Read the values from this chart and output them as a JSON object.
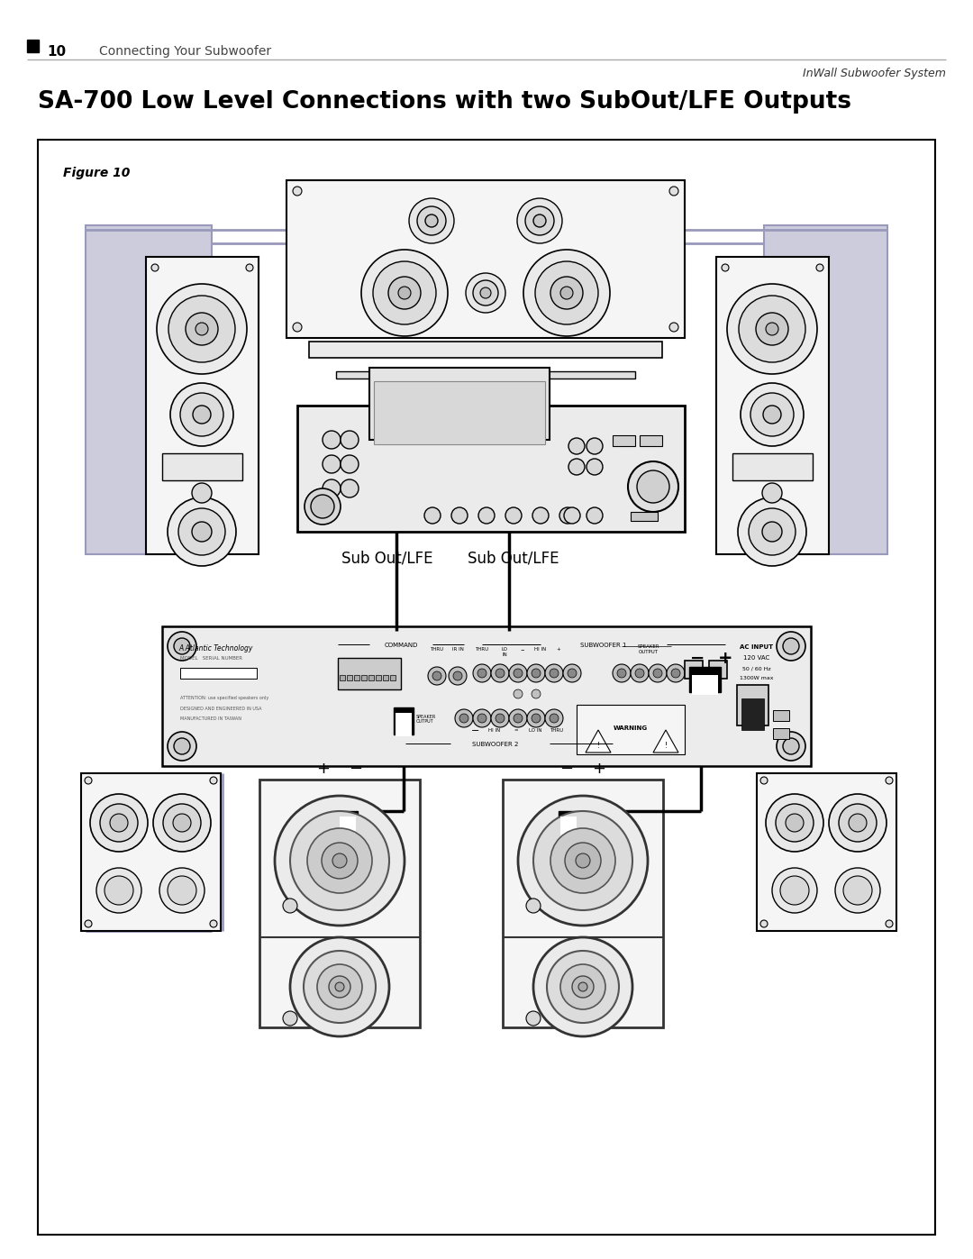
{
  "page_bg": "#ffffff",
  "page_number": "10",
  "header_text": "Connecting Your Subwoofer",
  "header_right": "InWall Subwoofer System",
  "title": "SA-700 Low Level Connections with two SubOut/LFE Outputs",
  "figure_label": "Figure 10",
  "sub_out_lfe_left": "Sub Out/LFE",
  "sub_out_lfe_right": "Sub Out/LFE",
  "blue_wire": "#9999bb",
  "light_gray": "#f0f0f0",
  "mid_gray": "#d8d8d8",
  "panel_gray": "#e8e8e8"
}
